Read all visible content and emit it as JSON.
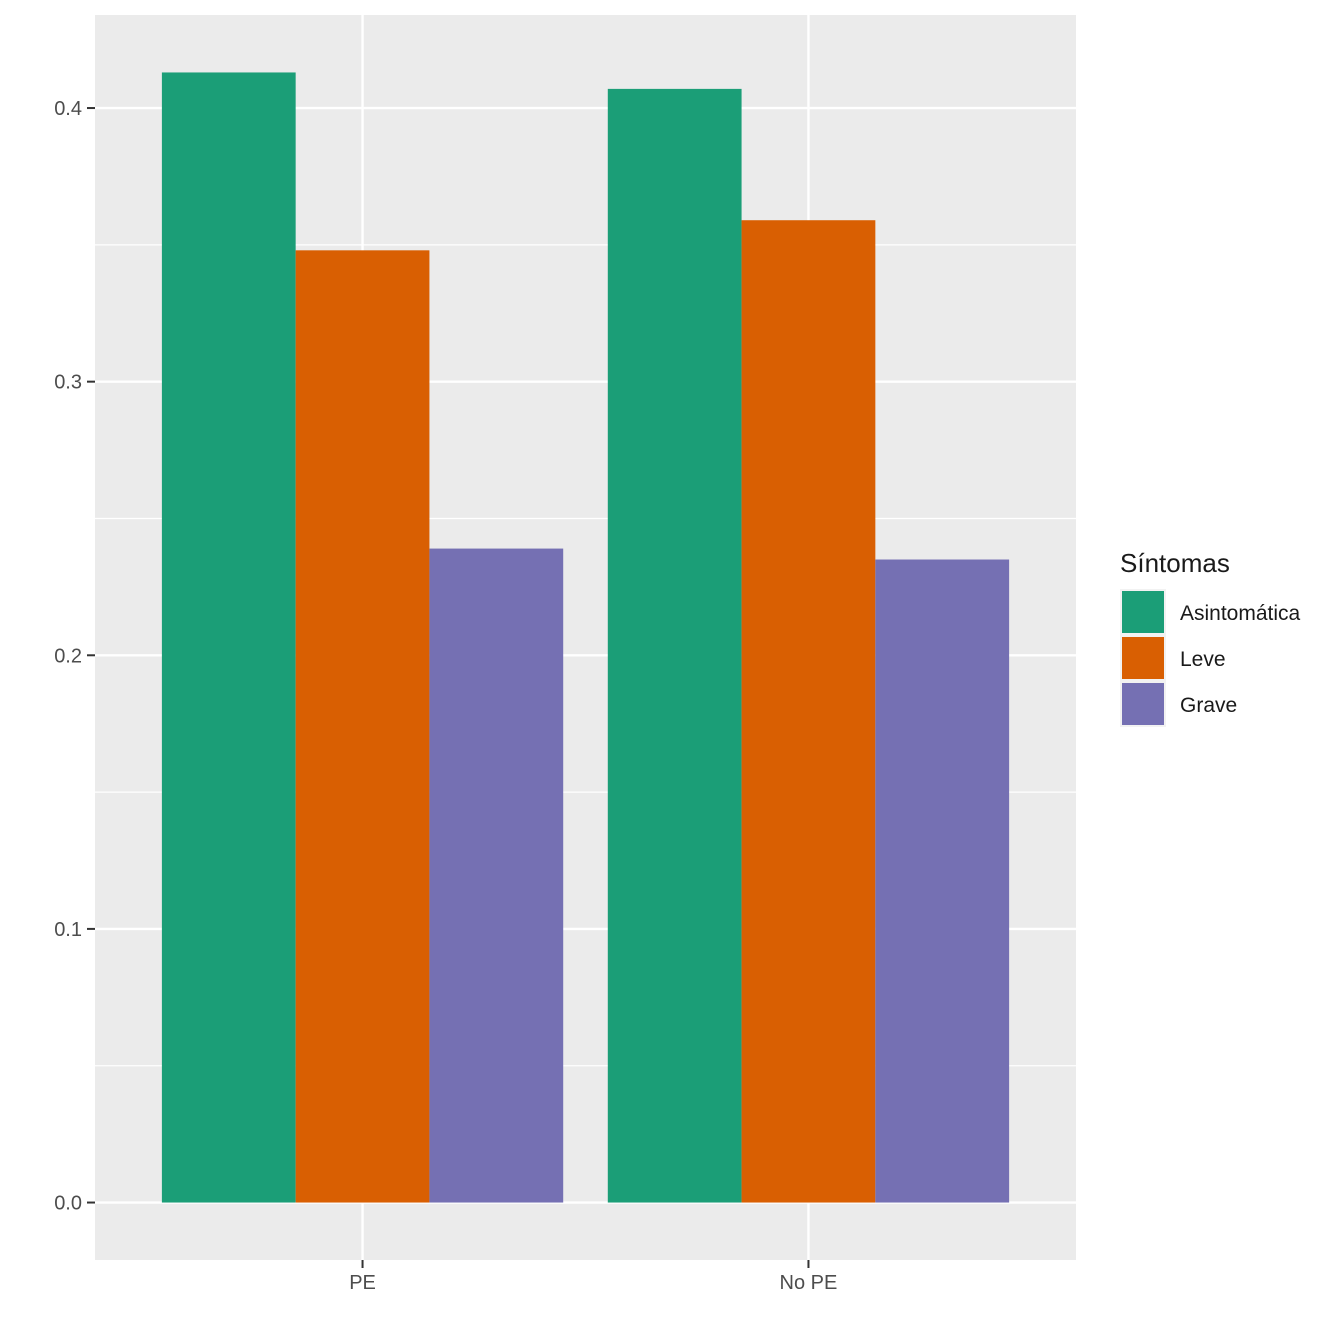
{
  "chart_data": {
    "type": "bar",
    "title": "",
    "xlabel": "",
    "ylabel": "",
    "categories": [
      "PE",
      "No PE"
    ],
    "series": [
      {
        "name": "Asintomática",
        "color": "#1B9E77",
        "values": [
          0.413,
          0.407
        ]
      },
      {
        "name": "Leve",
        "color": "#D95F02",
        "values": [
          0.348,
          0.359
        ]
      },
      {
        "name": "Grave",
        "color": "#7570B3",
        "values": [
          0.239,
          0.235
        ]
      }
    ],
    "ylim": [
      -0.021,
      0.434
    ],
    "yticks": [
      0.0,
      0.1,
      0.2,
      0.3,
      0.4
    ],
    "ytick_labels": [
      "0.0",
      "0.1",
      "0.2",
      "0.3",
      "0.4"
    ],
    "grid": true,
    "panel_background": "#EBEBEB",
    "legend": {
      "title": "Síntomas",
      "position": "right"
    }
  }
}
